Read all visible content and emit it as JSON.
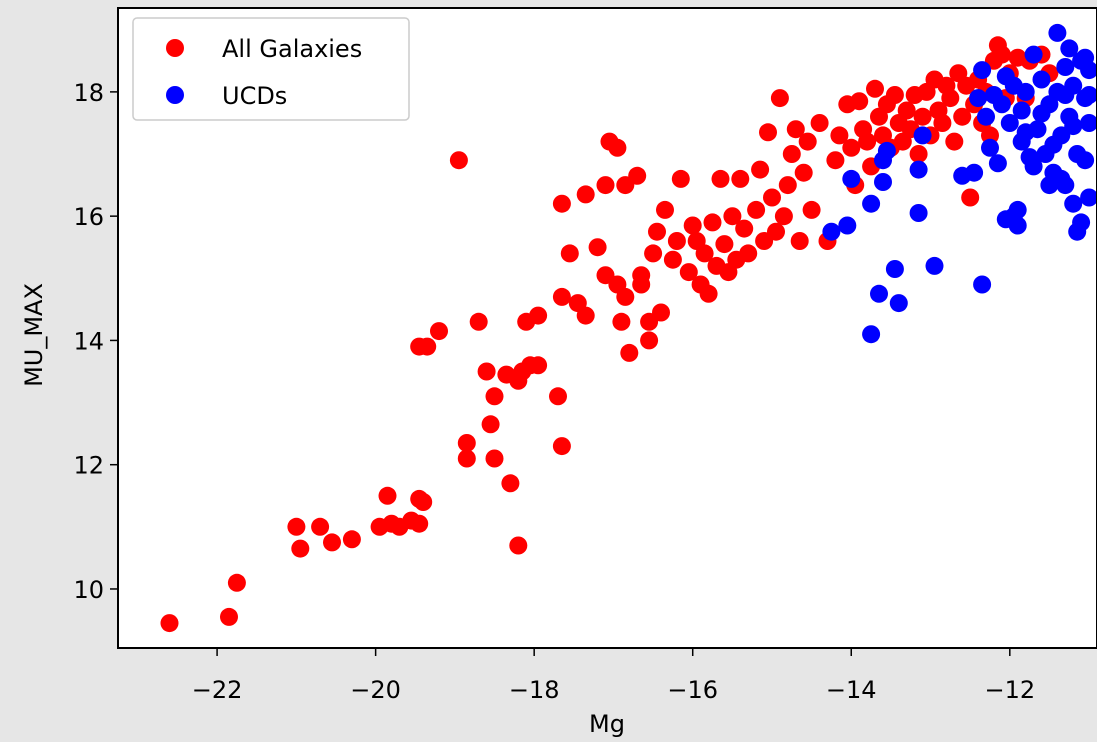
{
  "chart_data": {
    "type": "scatter",
    "title": "",
    "xlabel": "Mg",
    "ylabel": "MU_MAX",
    "xlim": [
      -23.25,
      -10.9
    ],
    "ylim": [
      9.05,
      19.35
    ],
    "xticks": [
      -22,
      -20,
      -18,
      -16,
      -14,
      -12
    ],
    "yticks": [
      10,
      12,
      14,
      16,
      18
    ],
    "grid": false,
    "legend": "top-left",
    "series": [
      {
        "name": "All Galaxies",
        "color": "#ff0000",
        "points": [
          [
            -22.6,
            9.45
          ],
          [
            -21.85,
            9.55
          ],
          [
            -21.75,
            10.1
          ],
          [
            -21.0,
            11.0
          ],
          [
            -20.95,
            10.65
          ],
          [
            -20.7,
            11.0
          ],
          [
            -20.55,
            10.75
          ],
          [
            -20.3,
            10.8
          ],
          [
            -19.95,
            11.0
          ],
          [
            -19.85,
            11.5
          ],
          [
            -19.8,
            11.05
          ],
          [
            -19.7,
            11.0
          ],
          [
            -19.55,
            11.1
          ],
          [
            -19.45,
            11.45
          ],
          [
            -19.45,
            11.05
          ],
          [
            -19.4,
            11.4
          ],
          [
            -19.45,
            13.9
          ],
          [
            -19.35,
            13.9
          ],
          [
            -19.2,
            14.15
          ],
          [
            -18.95,
            16.9
          ],
          [
            -18.85,
            12.35
          ],
          [
            -18.85,
            12.1
          ],
          [
            -18.7,
            14.3
          ],
          [
            -18.6,
            13.5
          ],
          [
            -18.55,
            12.65
          ],
          [
            -18.5,
            13.1
          ],
          [
            -18.5,
            12.1
          ],
          [
            -18.35,
            13.45
          ],
          [
            -18.3,
            11.7
          ],
          [
            -18.2,
            10.7
          ],
          [
            -18.2,
            13.35
          ],
          [
            -18.15,
            13.5
          ],
          [
            -18.1,
            14.3
          ],
          [
            -18.05,
            13.6
          ],
          [
            -17.95,
            13.6
          ],
          [
            -17.95,
            14.4
          ],
          [
            -17.7,
            13.1
          ],
          [
            -17.65,
            12.3
          ],
          [
            -17.65,
            14.7
          ],
          [
            -17.65,
            16.2
          ],
          [
            -17.55,
            15.4
          ],
          [
            -17.45,
            14.6
          ],
          [
            -17.35,
            14.4
          ],
          [
            -17.35,
            16.35
          ],
          [
            -17.2,
            15.5
          ],
          [
            -17.1,
            16.5
          ],
          [
            -17.1,
            15.05
          ],
          [
            -17.05,
            17.2
          ],
          [
            -16.95,
            17.1
          ],
          [
            -16.95,
            14.9
          ],
          [
            -16.9,
            14.3
          ],
          [
            -16.85,
            14.7
          ],
          [
            -16.85,
            16.5
          ],
          [
            -16.8,
            13.8
          ],
          [
            -16.7,
            16.65
          ],
          [
            -16.65,
            14.9
          ],
          [
            -16.65,
            15.05
          ],
          [
            -16.55,
            14.0
          ],
          [
            -16.55,
            14.3
          ],
          [
            -16.5,
            15.4
          ],
          [
            -16.45,
            15.75
          ],
          [
            -16.4,
            14.45
          ],
          [
            -16.35,
            16.1
          ],
          [
            -16.25,
            15.3
          ],
          [
            -16.2,
            15.6
          ],
          [
            -16.15,
            16.6
          ],
          [
            -16.05,
            15.1
          ],
          [
            -16.0,
            15.85
          ],
          [
            -15.95,
            15.6
          ],
          [
            -15.9,
            14.9
          ],
          [
            -15.85,
            15.4
          ],
          [
            -15.8,
            14.75
          ],
          [
            -15.75,
            15.9
          ],
          [
            -15.7,
            15.2
          ],
          [
            -15.65,
            16.6
          ],
          [
            -15.6,
            15.55
          ],
          [
            -15.55,
            15.1
          ],
          [
            -15.5,
            16.0
          ],
          [
            -15.45,
            15.3
          ],
          [
            -15.4,
            16.6
          ],
          [
            -15.35,
            15.8
          ],
          [
            -15.3,
            15.4
          ],
          [
            -15.2,
            16.1
          ],
          [
            -15.15,
            16.75
          ],
          [
            -15.1,
            15.6
          ],
          [
            -15.05,
            17.35
          ],
          [
            -15.0,
            16.3
          ],
          [
            -14.95,
            15.75
          ],
          [
            -14.9,
            17.9
          ],
          [
            -14.85,
            16.0
          ],
          [
            -14.8,
            16.5
          ],
          [
            -14.75,
            17.0
          ],
          [
            -14.7,
            17.4
          ],
          [
            -14.65,
            15.6
          ],
          [
            -14.6,
            16.7
          ],
          [
            -14.55,
            17.2
          ],
          [
            -14.5,
            16.1
          ],
          [
            -14.4,
            17.5
          ],
          [
            -14.3,
            15.6
          ],
          [
            -14.2,
            16.9
          ],
          [
            -14.15,
            17.3
          ],
          [
            -14.05,
            17.8
          ],
          [
            -14.0,
            17.1
          ],
          [
            -13.95,
            16.5
          ],
          [
            -13.9,
            17.85
          ],
          [
            -13.85,
            17.4
          ],
          [
            -13.8,
            17.2
          ],
          [
            -13.75,
            16.8
          ],
          [
            -13.7,
            18.05
          ],
          [
            -13.65,
            17.6
          ],
          [
            -13.6,
            17.3
          ],
          [
            -13.55,
            17.8
          ],
          [
            -13.5,
            17.1
          ],
          [
            -13.45,
            17.95
          ],
          [
            -13.4,
            17.5
          ],
          [
            -13.35,
            17.2
          ],
          [
            -13.3,
            17.7
          ],
          [
            -13.25,
            17.4
          ],
          [
            -13.2,
            17.95
          ],
          [
            -13.15,
            17.0
          ],
          [
            -13.1,
            17.6
          ],
          [
            -13.05,
            18.0
          ],
          [
            -13.0,
            17.3
          ],
          [
            -12.95,
            18.2
          ],
          [
            -12.9,
            17.7
          ],
          [
            -12.85,
            17.5
          ],
          [
            -12.8,
            18.1
          ],
          [
            -12.75,
            17.9
          ],
          [
            -12.7,
            17.2
          ],
          [
            -12.65,
            18.3
          ],
          [
            -12.6,
            17.6
          ],
          [
            -12.55,
            18.1
          ],
          [
            -12.5,
            16.3
          ],
          [
            -12.45,
            17.8
          ],
          [
            -12.4,
            18.2
          ],
          [
            -12.35,
            17.5
          ],
          [
            -12.3,
            18.0
          ],
          [
            -12.25,
            17.3
          ],
          [
            -12.2,
            18.5
          ],
          [
            -12.15,
            18.75
          ],
          [
            -12.1,
            18.6
          ],
          [
            -12.05,
            17.9
          ],
          [
            -12.0,
            18.3
          ],
          [
            -11.9,
            18.55
          ],
          [
            -11.8,
            17.9
          ],
          [
            -11.75,
            18.5
          ],
          [
            -11.6,
            18.6
          ],
          [
            -11.5,
            18.3
          ]
        ]
      },
      {
        "name": "UCDs",
        "color": "#0000ff",
        "points": [
          [
            -14.25,
            15.75
          ],
          [
            -14.05,
            15.85
          ],
          [
            -14.0,
            16.6
          ],
          [
            -13.75,
            16.2
          ],
          [
            -13.75,
            14.1
          ],
          [
            -13.65,
            14.75
          ],
          [
            -13.6,
            16.9
          ],
          [
            -13.6,
            16.55
          ],
          [
            -13.55,
            17.05
          ],
          [
            -13.45,
            15.15
          ],
          [
            -13.4,
            14.6
          ],
          [
            -13.15,
            16.05
          ],
          [
            -13.15,
            16.75
          ],
          [
            -13.1,
            17.3
          ],
          [
            -12.95,
            15.2
          ],
          [
            -12.6,
            16.65
          ],
          [
            -12.45,
            16.7
          ],
          [
            -12.35,
            14.9
          ],
          [
            -12.35,
            18.35
          ],
          [
            -12.3,
            17.6
          ],
          [
            -12.25,
            17.1
          ],
          [
            -12.2,
            17.95
          ],
          [
            -12.15,
            16.85
          ],
          [
            -12.05,
            18.25
          ],
          [
            -12.05,
            15.95
          ],
          [
            -12.0,
            17.5
          ],
          [
            -11.95,
            16.0
          ],
          [
            -11.95,
            18.1
          ],
          [
            -11.9,
            16.1
          ],
          [
            -11.9,
            15.85
          ],
          [
            -11.85,
            17.7
          ],
          [
            -11.85,
            17.2
          ],
          [
            -11.8,
            18.0
          ],
          [
            -11.75,
            16.95
          ],
          [
            -11.7,
            18.6
          ],
          [
            -11.65,
            17.4
          ],
          [
            -11.6,
            18.2
          ],
          [
            -11.55,
            17.0
          ],
          [
            -11.5,
            16.5
          ],
          [
            -11.5,
            17.8
          ],
          [
            -11.45,
            16.7
          ],
          [
            -11.4,
            18.95
          ],
          [
            -11.4,
            18.0
          ],
          [
            -11.35,
            17.3
          ],
          [
            -11.3,
            18.4
          ],
          [
            -11.3,
            16.5
          ],
          [
            -11.25,
            18.7
          ],
          [
            -11.25,
            17.6
          ],
          [
            -11.2,
            18.1
          ],
          [
            -11.2,
            16.2
          ],
          [
            -11.15,
            17.0
          ],
          [
            -11.15,
            15.75
          ],
          [
            -11.1,
            18.5
          ],
          [
            -11.1,
            15.9
          ],
          [
            -11.05,
            17.9
          ],
          [
            -11.05,
            16.9
          ],
          [
            -11.0,
            18.35
          ],
          [
            -11.0,
            17.5
          ],
          [
            -11.0,
            16.3
          ],
          [
            -11.0,
            17.95
          ],
          [
            -11.05,
            18.55
          ],
          [
            -11.3,
            17.95
          ],
          [
            -11.6,
            17.65
          ],
          [
            -11.8,
            17.35
          ],
          [
            -12.1,
            17.8
          ],
          [
            -11.45,
            17.15
          ],
          [
            -11.2,
            17.45
          ],
          [
            -11.7,
            16.8
          ],
          [
            -11.35,
            16.6
          ],
          [
            -12.4,
            17.9
          ]
        ]
      }
    ]
  }
}
